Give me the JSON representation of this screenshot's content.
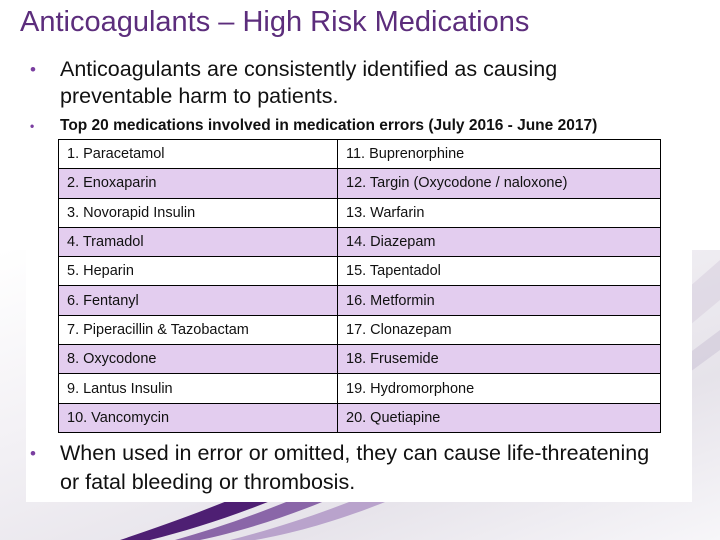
{
  "slide": {
    "title": "Anticoagulants – High Risk Medications",
    "bullets": {
      "intro": "Anticoagulants are consistently identified as causing preventable harm to patients.",
      "table_heading": "Top 20 medications involved in medication errors (July 2016 - June 2017)",
      "closing": "When used in error or omitted, they can cause life-threatening or fatal bleeding or thrombosis."
    },
    "table": {
      "rows": [
        [
          "1. Paracetamol",
          "11. Buprenorphine"
        ],
        [
          "2. Enoxaparin",
          "12. Targin (Oxycodone / naloxone)"
        ],
        [
          "3. Novorapid Insulin",
          "13. Warfarin"
        ],
        [
          "4. Tramadol",
          "14. Diazepam"
        ],
        [
          "5. Heparin",
          "15. Tapentadol"
        ],
        [
          "6. Fentanyl",
          "16. Metformin"
        ],
        [
          "7. Piperacillin & Tazobactam",
          "17. Clonazepam"
        ],
        [
          "8. Oxycodone",
          "18. Frusemide"
        ],
        [
          "9. Lantus Insulin",
          "19. Hydromorphone"
        ],
        [
          "10. Vancomycin",
          "20. Quetiapine"
        ]
      ]
    },
    "colors": {
      "title": "#5c2d7c",
      "bullet": "#7a3ea0",
      "highlight_row": "#e3cdef",
      "stripe_dark": "#4e1f73",
      "stripe_light": "#b9a3cc"
    }
  }
}
